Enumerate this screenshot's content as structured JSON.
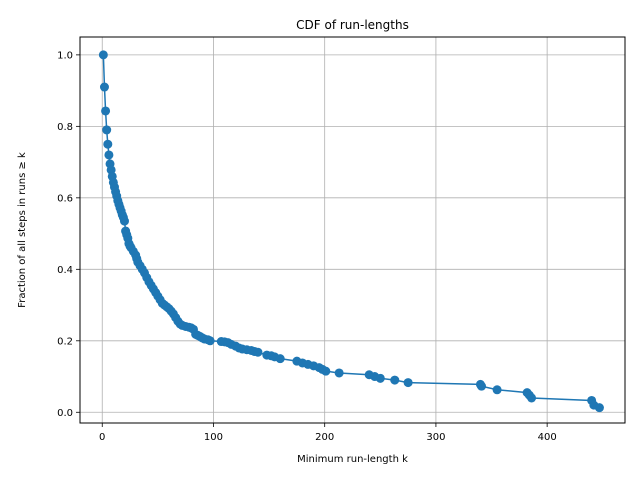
{
  "chart_data": {
    "type": "line",
    "title": "CDF of run-lengths",
    "xlabel": "Minimum run-length k",
    "ylabel": "Fraction of all steps in runs ≥ k",
    "xlim": [
      -20,
      470
    ],
    "ylim": [
      -0.03,
      1.05
    ],
    "xticks": [
      0,
      100,
      200,
      300,
      400
    ],
    "xtick_labels": [
      "0",
      "100",
      "200",
      "300",
      "400"
    ],
    "yticks": [
      0.0,
      0.2,
      0.4,
      0.6,
      0.8,
      1.0
    ],
    "ytick_labels": [
      "0.0",
      "0.2",
      "0.4",
      "0.6",
      "0.8",
      "1.0"
    ],
    "grid": true,
    "legend": false,
    "color": "#1f77b4",
    "marker": "circle",
    "series": [
      {
        "x": [
          1,
          2,
          3,
          4,
          5,
          6,
          7,
          8,
          9,
          10,
          11,
          12,
          13,
          14,
          15,
          16,
          17,
          18,
          19,
          20,
          21,
          22,
          23,
          24,
          25,
          26,
          28,
          30,
          31,
          32,
          34,
          36,
          38,
          40,
          42,
          44,
          46,
          48,
          50,
          52,
          54,
          56,
          58,
          60,
          62,
          64,
          66,
          68,
          70,
          72,
          75,
          78,
          80,
          82,
          84,
          86,
          88,
          90,
          92,
          95,
          97,
          107,
          110,
          113,
          116,
          120,
          123,
          126,
          130,
          134,
          137,
          140,
          148,
          152,
          155,
          160,
          175,
          180,
          185,
          190,
          195,
          198,
          201,
          213,
          240,
          245,
          250,
          263,
          275,
          340,
          341,
          355,
          382,
          384,
          386,
          440,
          442,
          447
        ],
        "y": [
          1.0,
          0.91,
          0.843,
          0.79,
          0.75,
          0.72,
          0.695,
          0.678,
          0.66,
          0.643,
          0.63,
          0.617,
          0.605,
          0.592,
          0.582,
          0.572,
          0.563,
          0.553,
          0.545,
          0.535,
          0.507,
          0.497,
          0.487,
          0.472,
          0.465,
          0.46,
          0.45,
          0.44,
          0.43,
          0.42,
          0.41,
          0.4,
          0.39,
          0.377,
          0.365,
          0.355,
          0.345,
          0.335,
          0.325,
          0.315,
          0.305,
          0.3,
          0.295,
          0.29,
          0.283,
          0.275,
          0.265,
          0.255,
          0.247,
          0.243,
          0.24,
          0.238,
          0.236,
          0.232,
          0.218,
          0.215,
          0.212,
          0.208,
          0.205,
          0.203,
          0.2,
          0.198,
          0.197,
          0.195,
          0.19,
          0.185,
          0.18,
          0.177,
          0.175,
          0.173,
          0.17,
          0.168,
          0.16,
          0.158,
          0.155,
          0.15,
          0.143,
          0.138,
          0.134,
          0.13,
          0.125,
          0.12,
          0.115,
          0.11,
          0.105,
          0.1,
          0.095,
          0.09,
          0.083,
          0.078,
          0.073,
          0.063,
          0.055,
          0.048,
          0.04,
          0.033,
          0.02,
          0.013
        ]
      }
    ]
  }
}
